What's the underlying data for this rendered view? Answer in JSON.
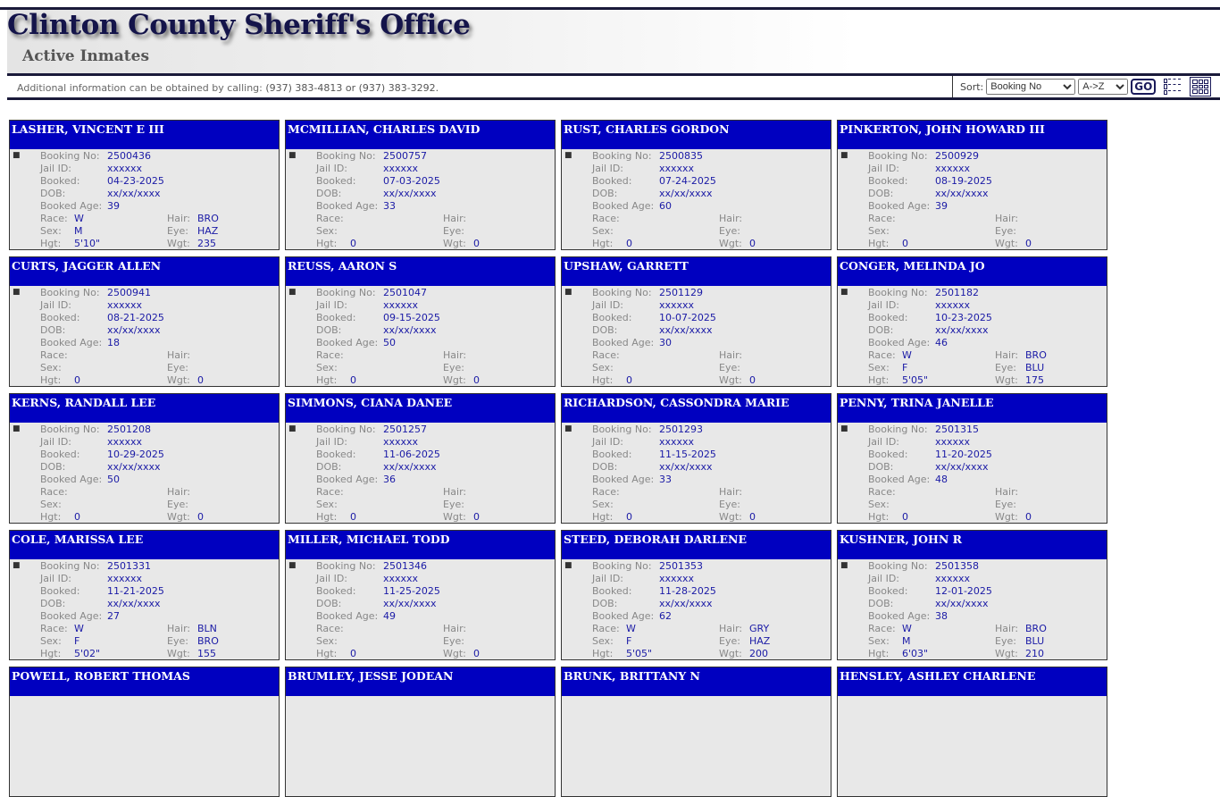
{
  "header": {
    "title": "Clinton County Sheriff's Office",
    "subtitle": "Active Inmates",
    "info_text": "Additional information can be obtained by calling:",
    "phones": "(937) 383-4813 or (937) 383-3292."
  },
  "sort": {
    "label": "Sort:",
    "field": "Booking No",
    "order": "A->Z",
    "go_label": "GO"
  },
  "labels": {
    "booking": "Booking No:",
    "jail": "Jail ID:",
    "booked": "Booked:",
    "dob": "DOB:",
    "age": "Booked Age:",
    "race": "Race:",
    "hair": "Hair:",
    "sex": "Sex:",
    "eye": "Eye:",
    "hgt": "Hgt:",
    "wgt": "Wgt:"
  },
  "inmates": [
    {
      "name": "LASHER, VINCENT E III",
      "booking": "2500436",
      "jail": "xxxxxx",
      "booked": "04-23-2025",
      "dob": "xx/xx/xxxx",
      "age": "39",
      "race": "W",
      "hair": "BRO",
      "sex": "M",
      "eye": "HAZ",
      "hgt": "5'10\"",
      "wgt": "235"
    },
    {
      "name": "MCMILLIAN, CHARLES DAVID",
      "booking": "2500757",
      "jail": "xxxxxx",
      "booked": "07-03-2025",
      "dob": "xx/xx/xxxx",
      "age": "33",
      "race": "",
      "hair": "",
      "sex": "",
      "eye": "",
      "hgt": "0",
      "wgt": "0"
    },
    {
      "name": "RUST, CHARLES GORDON",
      "booking": "2500835",
      "jail": "xxxxxx",
      "booked": "07-24-2025",
      "dob": "xx/xx/xxxx",
      "age": "60",
      "race": "",
      "hair": "",
      "sex": "",
      "eye": "",
      "hgt": "0",
      "wgt": "0"
    },
    {
      "name": "PINKERTON, JOHN HOWARD III",
      "booking": "2500929",
      "jail": "xxxxxx",
      "booked": "08-19-2025",
      "dob": "xx/xx/xxxx",
      "age": "39",
      "race": "",
      "hair": "",
      "sex": "",
      "eye": "",
      "hgt": "0",
      "wgt": "0"
    },
    {
      "name": "CURTS, JAGGER ALLEN",
      "booking": "2500941",
      "jail": "xxxxxx",
      "booked": "08-21-2025",
      "dob": "xx/xx/xxxx",
      "age": "18",
      "race": "",
      "hair": "",
      "sex": "",
      "eye": "",
      "hgt": "0",
      "wgt": "0"
    },
    {
      "name": "REUSS, AARON S",
      "booking": "2501047",
      "jail": "xxxxxx",
      "booked": "09-15-2025",
      "dob": "xx/xx/xxxx",
      "age": "50",
      "race": "",
      "hair": "",
      "sex": "",
      "eye": "",
      "hgt": "0",
      "wgt": "0"
    },
    {
      "name": "UPSHAW, GARRETT",
      "booking": "2501129",
      "jail": "xxxxxx",
      "booked": "10-07-2025",
      "dob": "xx/xx/xxxx",
      "age": "30",
      "race": "",
      "hair": "",
      "sex": "",
      "eye": "",
      "hgt": "0",
      "wgt": "0"
    },
    {
      "name": "CONGER, MELINDA JO",
      "booking": "2501182",
      "jail": "xxxxxx",
      "booked": "10-23-2025",
      "dob": "xx/xx/xxxx",
      "age": "46",
      "race": "W",
      "hair": "BRO",
      "sex": "F",
      "eye": "BLU",
      "hgt": "5'05\"",
      "wgt": "175"
    },
    {
      "name": "KERNS, RANDALL LEE",
      "booking": "2501208",
      "jail": "xxxxxx",
      "booked": "10-29-2025",
      "dob": "xx/xx/xxxx",
      "age": "50",
      "race": "",
      "hair": "",
      "sex": "",
      "eye": "",
      "hgt": "0",
      "wgt": "0"
    },
    {
      "name": "SIMMONS, CIANA DANEE",
      "booking": "2501257",
      "jail": "xxxxxx",
      "booked": "11-06-2025",
      "dob": "xx/xx/xxxx",
      "age": "36",
      "race": "",
      "hair": "",
      "sex": "",
      "eye": "",
      "hgt": "0",
      "wgt": "0"
    },
    {
      "name": "RICHARDSON, CASSONDRA MARIE",
      "booking": "2501293",
      "jail": "xxxxxx",
      "booked": "11-15-2025",
      "dob": "xx/xx/xxxx",
      "age": "33",
      "race": "",
      "hair": "",
      "sex": "",
      "eye": "",
      "hgt": "0",
      "wgt": "0"
    },
    {
      "name": "PENNY, TRINA JANELLE",
      "booking": "2501315",
      "jail": "xxxxxx",
      "booked": "11-20-2025",
      "dob": "xx/xx/xxxx",
      "age": "48",
      "race": "",
      "hair": "",
      "sex": "",
      "eye": "",
      "hgt": "0",
      "wgt": "0"
    },
    {
      "name": "COLE, MARISSA LEE",
      "booking": "2501331",
      "jail": "xxxxxx",
      "booked": "11-21-2025",
      "dob": "xx/xx/xxxx",
      "age": "27",
      "race": "W",
      "hair": "BLN",
      "sex": "F",
      "eye": "BRO",
      "hgt": "5'02\"",
      "wgt": "155"
    },
    {
      "name": "MILLER, MICHAEL TODD",
      "booking": "2501346",
      "jail": "xxxxxx",
      "booked": "11-25-2025",
      "dob": "xx/xx/xxxx",
      "age": "49",
      "race": "",
      "hair": "",
      "sex": "",
      "eye": "",
      "hgt": "0",
      "wgt": "0"
    },
    {
      "name": "STEED, DEBORAH DARLENE",
      "booking": "2501353",
      "jail": "xxxxxx",
      "booked": "11-28-2025",
      "dob": "xx/xx/xxxx",
      "age": "62",
      "race": "W",
      "hair": "GRY",
      "sex": "F",
      "eye": "HAZ",
      "hgt": "5'05\"",
      "wgt": "200"
    },
    {
      "name": "KUSHNER, JOHN R",
      "booking": "2501358",
      "jail": "xxxxxx",
      "booked": "12-01-2025",
      "dob": "xx/xx/xxxx",
      "age": "38",
      "race": "W",
      "hair": "BRO",
      "sex": "M",
      "eye": "BLU",
      "hgt": "6'03\"",
      "wgt": "210"
    },
    {
      "name": "POWELL, ROBERT THOMAS"
    },
    {
      "name": "BRUMLEY, JESSE JODEAN"
    },
    {
      "name": "BRUNK, BRITTANY N"
    },
    {
      "name": "HENSLEY, ASHLEY CHARLENE"
    }
  ]
}
